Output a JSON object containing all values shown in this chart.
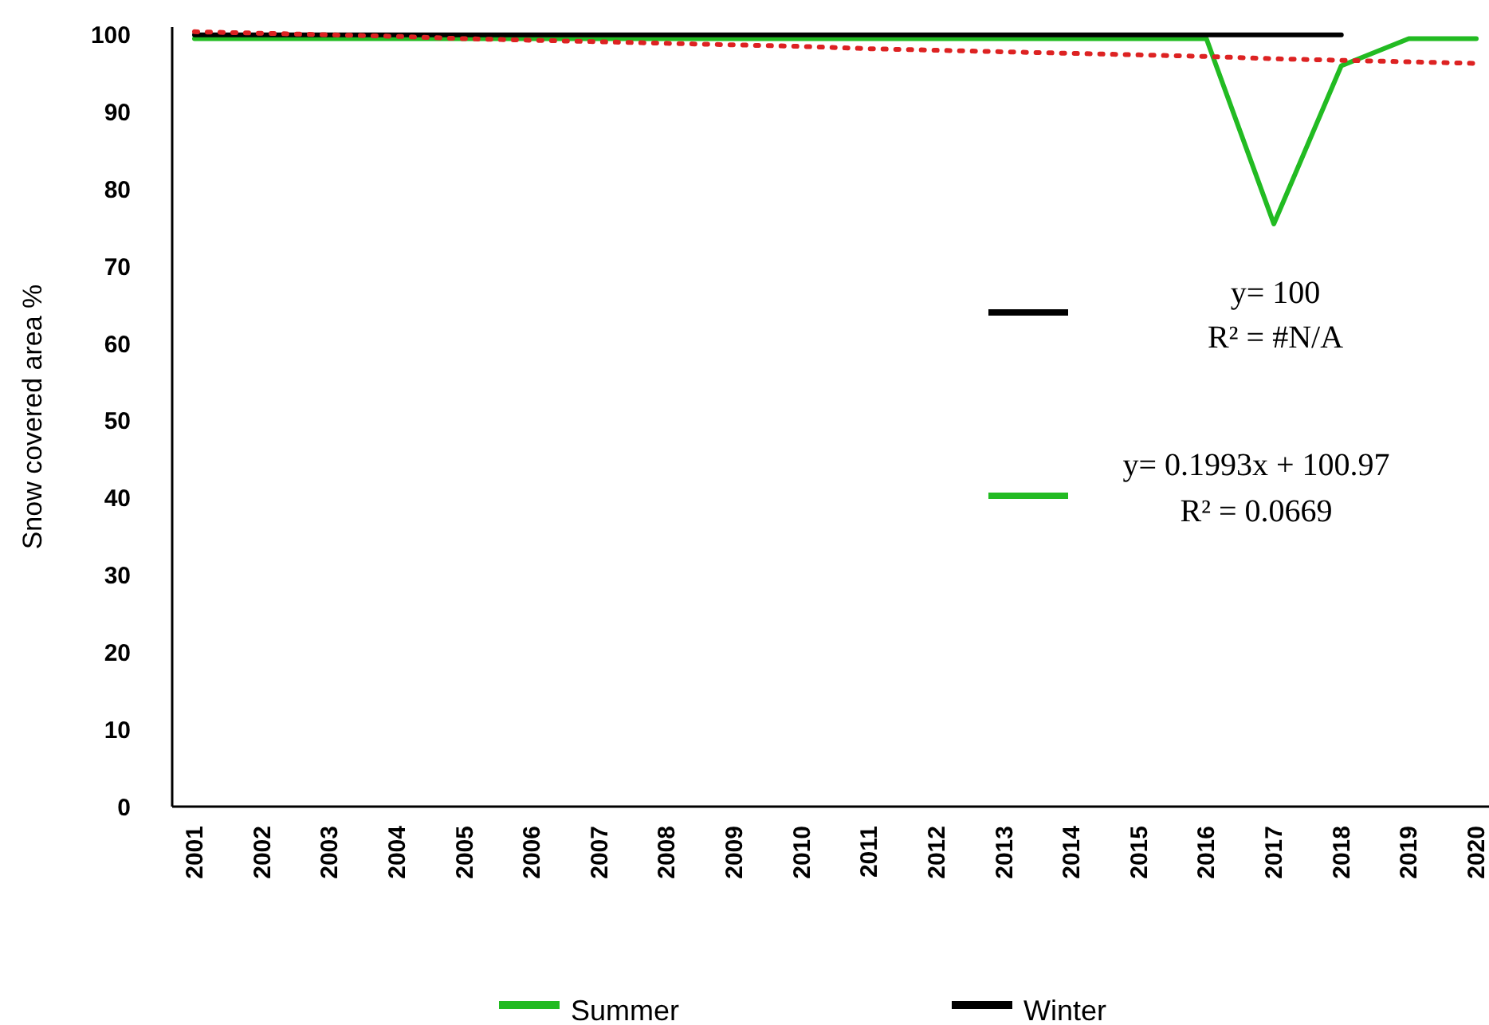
{
  "chart_data": {
    "type": "line",
    "ylabel": "Snow covered area %",
    "categories": [
      "2001",
      "2002",
      "2003",
      "2004",
      "2005",
      "2006",
      "2007",
      "2008",
      "2009",
      "2010",
      "2011",
      "2012",
      "2013",
      "2014",
      "2015",
      "2016",
      "2017",
      "2018",
      "2019",
      "2020"
    ],
    "series": [
      {
        "name": "Summer",
        "color": "#22bb22",
        "values": [
          99.5,
          99.5,
          99.5,
          99.5,
          99.5,
          99.5,
          99.5,
          99.5,
          99.5,
          99.5,
          99.5,
          99.5,
          99.5,
          99.5,
          99.5,
          99.5,
          75.5,
          96,
          99.5,
          99.5
        ]
      },
      {
        "name": "Winter",
        "color": "#000000",
        "values": [
          100,
          100,
          100,
          100,
          100,
          100,
          100,
          100,
          100,
          100,
          100,
          100,
          100,
          100,
          100,
          100,
          100,
          100,
          null,
          null
        ]
      },
      {
        "color": "#dd2222",
        "line_style": "dotted",
        "values": [
          100.4,
          100.2,
          100,
          99.8,
          99.5,
          99.3,
          99.1,
          98.9,
          98.7,
          98.5,
          98.2,
          98,
          97.8,
          97.6,
          97.4,
          97.2,
          96.9,
          96.7,
          96.5,
          96.3
        ]
      }
    ],
    "ylim": [
      0,
      101
    ],
    "yticks": [
      0,
      10,
      20,
      30,
      40,
      50,
      60,
      70,
      80,
      90,
      100
    ],
    "grid": false,
    "legend": "bottom",
    "annotations": [
      "y= 100",
      "R² = #N/A",
      "y= 0.1993x + 100.97",
      "R² = 0.0669"
    ]
  }
}
